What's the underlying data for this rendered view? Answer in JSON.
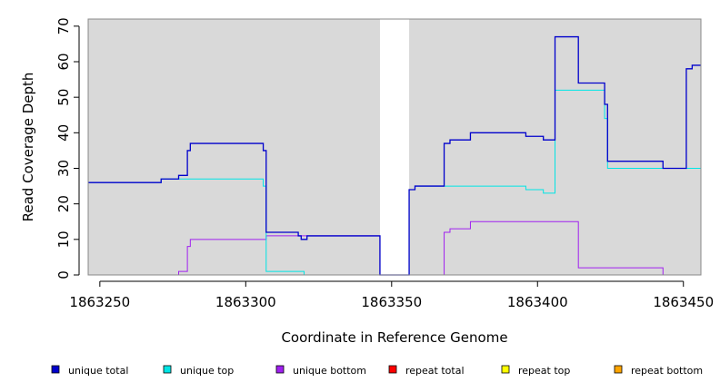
{
  "chart_data": {
    "type": "line",
    "step": true,
    "xlabel": "Coordinate in Reference Genome",
    "ylabel": "Read Coverage Depth",
    "xlim": [
      1863246,
      1863456
    ],
    "ylim": [
      0,
      72
    ],
    "xticks": [
      1863250,
      1863300,
      1863350,
      1863400,
      1863450
    ],
    "xtick_labels": [
      "1863250",
      "1863300",
      "1863350",
      "1863400",
      "1863450"
    ],
    "yticks": [
      0,
      10,
      20,
      30,
      40,
      50,
      60,
      70
    ],
    "ytick_labels": [
      "0",
      "10",
      "20",
      "30",
      "40",
      "50",
      "60",
      "70"
    ],
    "background_color": "#d9d9d9",
    "gap_regions": [
      [
        1863346,
        1863356
      ]
    ],
    "legend_position": "bottom",
    "series": [
      {
        "name": "unique total",
        "color": "#0000cc",
        "points": [
          [
            1863246,
            26
          ],
          [
            1863271,
            27
          ],
          [
            1863277,
            28
          ],
          [
            1863280,
            35
          ],
          [
            1863281,
            37
          ],
          [
            1863306,
            35
          ],
          [
            1863307,
            12
          ],
          [
            1863318,
            11
          ],
          [
            1863319,
            10
          ],
          [
            1863321,
            11
          ],
          [
            1863346,
            0
          ],
          [
            1863356,
            24
          ],
          [
            1863358,
            25
          ],
          [
            1863368,
            37
          ],
          [
            1863370,
            38
          ],
          [
            1863377,
            40
          ],
          [
            1863396,
            39
          ],
          [
            1863402,
            38
          ],
          [
            1863406,
            67
          ],
          [
            1863414,
            54
          ],
          [
            1863423,
            48
          ],
          [
            1863424,
            32
          ],
          [
            1863443,
            30
          ],
          [
            1863451,
            58
          ],
          [
            1863453,
            59
          ],
          [
            1863456,
            59
          ]
        ]
      },
      {
        "name": "unique top",
        "color": "#00e5e5",
        "points": [
          [
            1863246,
            26
          ],
          [
            1863271,
            27
          ],
          [
            1863306,
            25
          ],
          [
            1863307,
            1
          ],
          [
            1863320,
            0
          ],
          [
            1863346,
            0
          ],
          [
            1863356,
            24
          ],
          [
            1863358,
            25
          ],
          [
            1863396,
            24
          ],
          [
            1863402,
            23
          ],
          [
            1863406,
            52
          ],
          [
            1863423,
            44
          ],
          [
            1863424,
            30
          ],
          [
            1863443,
            30
          ],
          [
            1863456,
            30
          ]
        ]
      },
      {
        "name": "unique bottom",
        "color": "#a020f0",
        "points": [
          [
            1863246,
            0
          ],
          [
            1863277,
            1
          ],
          [
            1863280,
            8
          ],
          [
            1863281,
            10
          ],
          [
            1863307,
            11
          ],
          [
            1863320,
            11
          ],
          [
            1863346,
            0
          ],
          [
            1863368,
            12
          ],
          [
            1863370,
            13
          ],
          [
            1863377,
            15
          ],
          [
            1863414,
            2
          ],
          [
            1863443,
            0
          ],
          [
            1863456,
            0
          ]
        ]
      },
      {
        "name": "repeat total",
        "color": "#ff0000",
        "points": [
          [
            1863246,
            0
          ],
          [
            1863456,
            0
          ]
        ]
      },
      {
        "name": "repeat top",
        "color": "#ffff00",
        "points": [
          [
            1863246,
            0
          ],
          [
            1863456,
            0
          ]
        ]
      },
      {
        "name": "repeat bottom",
        "color": "#ffa500",
        "points": [
          [
            1863246,
            0
          ],
          [
            1863456,
            0
          ]
        ]
      }
    ]
  }
}
